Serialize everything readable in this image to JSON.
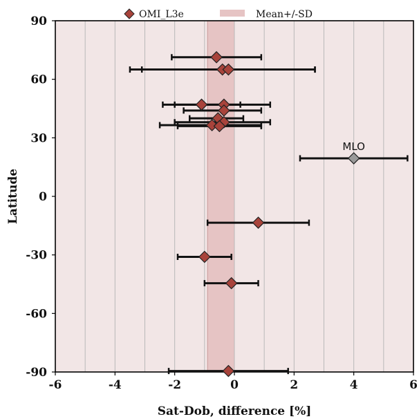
{
  "chart_data": {
    "type": "scatter",
    "xlabel": "Sat-Dob, difference [%]",
    "ylabel": "Latitude",
    "xlim": [
      -6,
      6
    ],
    "ylim": [
      -90,
      90
    ],
    "xticks": [
      -6,
      -4,
      -2,
      0,
      2,
      4,
      6
    ],
    "xtick_labels": [
      "-6",
      "-4",
      "-2",
      "0",
      "2",
      "4",
      "6"
    ],
    "yticks": [
      90,
      60,
      30,
      0,
      -30,
      -60,
      -90
    ],
    "ytick_labels": [
      "90",
      "60",
      "30",
      "0",
      "-30",
      "-60",
      "-90"
    ],
    "grid": "vertical",
    "legend_placement": "top",
    "colors": {
      "plot_background": "#f2e6e6",
      "band": "#e6c4c4",
      "band_edge": "#c99a9a",
      "marker": "#a8433b",
      "mlo_marker": "#9a9a9a",
      "grid": "#b9b9b9"
    },
    "legend": [
      {
        "label": "OMI_L3e",
        "marker": "diamond",
        "color": "#a8433b"
      },
      {
        "label": "Mean+/-SD",
        "marker": "band",
        "color": "#e6c4c4"
      }
    ],
    "band": {
      "name": "Mean+/-SD",
      "x_low": -0.9,
      "x_high": 0.0
    },
    "series": [
      {
        "name": "OMI_L3e",
        "points": [
          {
            "x": -0.6,
            "y": 71.3,
            "xerr_low": -2.1,
            "xerr_high": 0.9
          },
          {
            "x": -0.4,
            "y": 65.0,
            "xerr_low": -3.5,
            "xerr_high": 2.7
          },
          {
            "x": -0.2,
            "y": 65.0,
            "xerr_low": -3.1,
            "xerr_high": 2.7
          },
          {
            "x": -1.1,
            "y": 47.0,
            "xerr_low": -2.4,
            "xerr_high": 0.2
          },
          {
            "x": -0.35,
            "y": 47.0,
            "xerr_low": -2.0,
            "xerr_high": 1.2
          },
          {
            "x": -0.35,
            "y": 44.0,
            "xerr_low": -1.7,
            "xerr_high": 0.9
          },
          {
            "x": -0.55,
            "y": 40.0,
            "xerr_low": -1.5,
            "xerr_high": 0.3
          },
          {
            "x": -0.35,
            "y": 38.0,
            "xerr_low": -2.0,
            "xerr_high": 1.2
          },
          {
            "x": -0.75,
            "y": 36.5,
            "xerr_low": -2.5,
            "xerr_high": 0.9
          },
          {
            "x": -0.5,
            "y": 36.0,
            "xerr_low": -1.9,
            "xerr_high": 0.9
          },
          {
            "x": 0.8,
            "y": -13.5,
            "xerr_low": -0.9,
            "xerr_high": 2.5
          },
          {
            "x": -1.0,
            "y": -31.0,
            "xerr_low": -1.9,
            "xerr_high": -0.1
          },
          {
            "x": -0.1,
            "y": -44.5,
            "xerr_low": -1.0,
            "xerr_high": 0.8
          },
          {
            "x": -0.2,
            "y": -89.5,
            "xerr_low": -2.2,
            "xerr_high": 1.8
          }
        ]
      },
      {
        "name": "MLO",
        "points": [
          {
            "x": 4.0,
            "y": 19.5,
            "xerr_low": 2.2,
            "xerr_high": 5.8
          }
        ]
      }
    ],
    "annotations": [
      {
        "text": "MLO",
        "x": 4.0,
        "y": 19.5
      }
    ]
  }
}
